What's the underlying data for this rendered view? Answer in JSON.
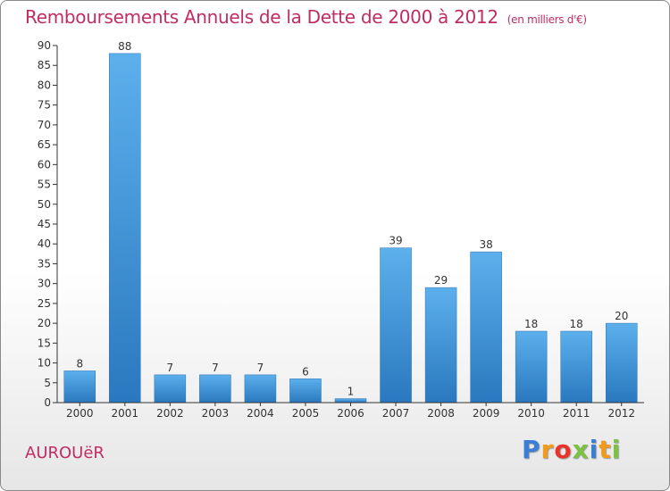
{
  "chart_data": {
    "type": "bar",
    "title": "Remboursements Annuels de la Dette de 2000 à 2012",
    "subtitle": "(en milliers d'€)",
    "categories": [
      "2000",
      "2001",
      "2002",
      "2003",
      "2004",
      "2005",
      "2006",
      "2007",
      "2008",
      "2009",
      "2010",
      "2011",
      "2012"
    ],
    "values": [
      8,
      88,
      7,
      7,
      7,
      6,
      1,
      39,
      29,
      38,
      18,
      18,
      20
    ],
    "yticks": [
      0,
      5,
      10,
      15,
      20,
      25,
      30,
      35,
      40,
      45,
      50,
      55,
      60,
      65,
      70,
      75,
      80,
      85,
      90
    ],
    "ylim": [
      0,
      90
    ],
    "xlabel": "",
    "ylabel": "",
    "grid": false,
    "bar_color": "#4a9fdf",
    "bar_color_dark": "#2f7fc4"
  },
  "place_name": "AUROUëR",
  "logo": {
    "text": "Proxiti",
    "letter_colors": [
      "#3a7fd5",
      "#f29a1b",
      "#e8352c",
      "#7cc242",
      "#3a7fd5",
      "#f29a1b",
      "#7cc242"
    ]
  },
  "colors": {
    "title": "#c02c64",
    "axis": "#333333"
  }
}
